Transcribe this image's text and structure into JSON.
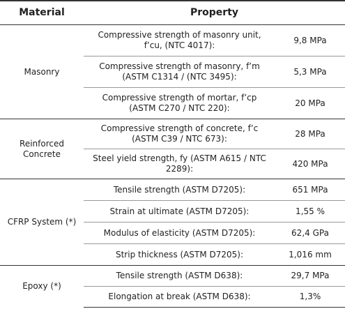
{
  "table": {
    "header": [
      "Material",
      "Property"
    ],
    "groups": [
      {
        "material": "Masonry",
        "rows": [
          [
            "Compressive strength of masonry unit, f’cu, (NTC 4017):",
            "9,8 MPa"
          ],
          [
            "Compressive strength of masonry, f’m (ASTM C1314 / (NTC 3495):",
            "5,3 MPa"
          ],
          [
            "Compressive strength of mortar, f’cp (ASTM C270 / NTC 220):",
            "20 MPa"
          ]
        ]
      },
      {
        "material": "Reinforced Concrete",
        "rows": [
          [
            "Compressive strength of concrete, f’c (ASTM C39 / NTC 673):",
            "28 MPa"
          ],
          [
            "Steel yield strength, fy (ASTM A615 / NTC 2289):",
            "420 MPa"
          ]
        ]
      },
      {
        "material": "CFRP System (*)",
        "rows": [
          [
            "Tensile strength (ASTM D7205):",
            "651 MPa"
          ],
          [
            "Strain at ultimate (ASTM D7205):",
            "1,55 %"
          ],
          [
            "Modulus of elasticity (ASTM D7205):",
            "62,4 GPa"
          ],
          [
            "Strip thickness (ASTM D7205):",
            "1,016 mm"
          ]
        ]
      },
      {
        "material": "Epoxy (*)",
        "rows": [
          [
            "Tensile strength (ASTM D638):",
            "29,7 MPa"
          ],
          [
            "Elongation at break (ASTM D638):",
            "1,3%"
          ]
        ]
      }
    ]
  }
}
